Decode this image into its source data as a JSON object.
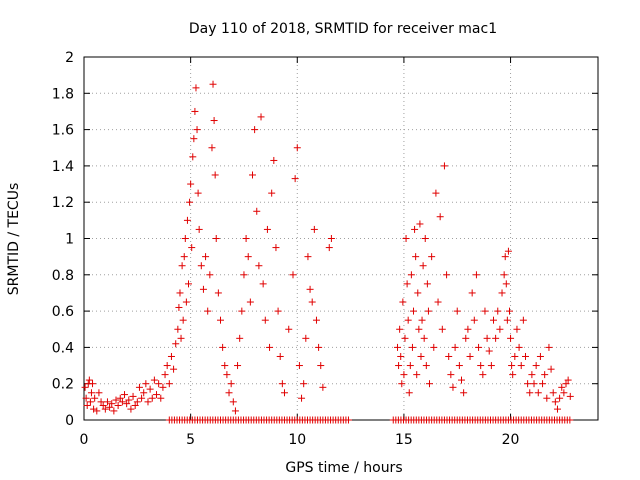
{
  "chart_data": {
    "type": "scatter",
    "title": "Day 110 of 2018, SRMTID for receiver mac1",
    "xlabel": "GPS time / hours",
    "ylabel": "SRMTID / TECUs",
    "xlim": [
      0,
      24.1
    ],
    "ylim": [
      0,
      2
    ],
    "xticks": [
      0,
      5,
      10,
      15,
      20
    ],
    "xtick_labels": [
      "0",
      "5",
      "10",
      "15",
      "20"
    ],
    "yticks": [
      0,
      0.2,
      0.4,
      0.6,
      0.8,
      1,
      1.2,
      1.4,
      1.6,
      1.8,
      2
    ],
    "ytick_labels": [
      "0",
      "0.2",
      "0.4",
      "0.6",
      "0.8",
      "1",
      "1.2",
      "1.4",
      "1.6",
      "1.8",
      "2"
    ],
    "grid": true,
    "marker": "+",
    "marker_color": "#e00000",
    "series": [
      {
        "name": "SRMTID",
        "points": [
          [
            0.05,
            0.18
          ],
          [
            0.1,
            0.12
          ],
          [
            0.15,
            0.08
          ],
          [
            0.2,
            0.2
          ],
          [
            0.25,
            0.22
          ],
          [
            0.3,
            0.1
          ],
          [
            0.35,
            0.15
          ],
          [
            0.4,
            0.2
          ],
          [
            0.45,
            0.06
          ],
          [
            0.5,
            0.12
          ],
          [
            0.6,
            0.05
          ],
          [
            0.7,
            0.15
          ],
          [
            0.8,
            0.1
          ],
          [
            0.9,
            0.08
          ],
          [
            1.0,
            0.06
          ],
          [
            1.1,
            0.1
          ],
          [
            1.2,
            0.07
          ],
          [
            1.3,
            0.09
          ],
          [
            1.4,
            0.05
          ],
          [
            1.5,
            0.11
          ],
          [
            1.6,
            0.08
          ],
          [
            1.7,
            0.12
          ],
          [
            1.8,
            0.1
          ],
          [
            1.9,
            0.14
          ],
          [
            2.0,
            0.09
          ],
          [
            2.1,
            0.11
          ],
          [
            2.2,
            0.06
          ],
          [
            2.3,
            0.13
          ],
          [
            2.4,
            0.08
          ],
          [
            2.5,
            0.1
          ],
          [
            2.6,
            0.18
          ],
          [
            2.7,
            0.12
          ],
          [
            2.8,
            0.15
          ],
          [
            2.9,
            0.2
          ],
          [
            3.0,
            0.1
          ],
          [
            3.1,
            0.17
          ],
          [
            3.2,
            0.12
          ],
          [
            3.3,
            0.22
          ],
          [
            3.4,
            0.14
          ],
          [
            3.5,
            0.2
          ],
          [
            3.6,
            0.12
          ],
          [
            3.7,
            0.18
          ],
          [
            3.8,
            0.25
          ],
          [
            3.9,
            0.3
          ],
          [
            4.0,
            0.2
          ],
          [
            4.1,
            0.35
          ],
          [
            4.2,
            0.28
          ],
          [
            4.3,
            0.42
          ],
          [
            4.4,
            0.5
          ],
          [
            4.45,
            0.62
          ],
          [
            4.5,
            0.7
          ],
          [
            4.55,
            0.45
          ],
          [
            4.6,
            0.85
          ],
          [
            4.65,
            0.55
          ],
          [
            4.7,
            0.9
          ],
          [
            4.75,
            1.0
          ],
          [
            4.8,
            0.65
          ],
          [
            4.85,
            1.1
          ],
          [
            4.9,
            0.75
          ],
          [
            4.95,
            1.2
          ],
          [
            5.0,
            1.3
          ],
          [
            5.05,
            0.95
          ],
          [
            5.1,
            1.45
          ],
          [
            5.15,
            1.55
          ],
          [
            5.2,
            1.7
          ],
          [
            5.25,
            1.83
          ],
          [
            5.3,
            1.6
          ],
          [
            5.35,
            1.25
          ],
          [
            5.4,
            1.05
          ],
          [
            5.5,
            0.85
          ],
          [
            5.6,
            0.72
          ],
          [
            5.7,
            0.9
          ],
          [
            5.8,
            0.6
          ],
          [
            5.9,
            0.8
          ],
          [
            6.0,
            1.5
          ],
          [
            6.05,
            1.85
          ],
          [
            6.1,
            1.65
          ],
          [
            6.15,
            1.35
          ],
          [
            6.2,
            1.0
          ],
          [
            6.3,
            0.7
          ],
          [
            6.4,
            0.55
          ],
          [
            6.5,
            0.4
          ],
          [
            6.6,
            0.3
          ],
          [
            6.7,
            0.25
          ],
          [
            6.8,
            0.15
          ],
          [
            6.9,
            0.2
          ],
          [
            7.0,
            0.1
          ],
          [
            7.1,
            0.05
          ],
          [
            7.2,
            0.3
          ],
          [
            7.3,
            0.45
          ],
          [
            7.4,
            0.6
          ],
          [
            7.5,
            0.8
          ],
          [
            7.6,
            1.0
          ],
          [
            7.7,
            0.9
          ],
          [
            7.8,
            0.65
          ],
          [
            7.9,
            1.35
          ],
          [
            8.0,
            1.6
          ],
          [
            8.1,
            1.15
          ],
          [
            8.2,
            0.85
          ],
          [
            8.3,
            1.67
          ],
          [
            8.4,
            0.75
          ],
          [
            8.5,
            0.55
          ],
          [
            8.6,
            1.05
          ],
          [
            8.7,
            0.4
          ],
          [
            8.8,
            1.25
          ],
          [
            8.9,
            1.43
          ],
          [
            9.0,
            0.95
          ],
          [
            9.1,
            0.6
          ],
          [
            9.2,
            0.35
          ],
          [
            9.3,
            0.2
          ],
          [
            9.4,
            0.15
          ],
          [
            9.6,
            0.5
          ],
          [
            9.8,
            0.8
          ],
          [
            9.9,
            1.33
          ],
          [
            10.0,
            1.5
          ],
          [
            10.1,
            0.3
          ],
          [
            10.2,
            0.12
          ],
          [
            10.3,
            0.2
          ],
          [
            10.4,
            0.45
          ],
          [
            10.5,
            0.9
          ],
          [
            10.6,
            0.72
          ],
          [
            10.7,
            0.65
          ],
          [
            10.8,
            1.05
          ],
          [
            10.9,
            0.55
          ],
          [
            11.0,
            0.4
          ],
          [
            11.1,
            0.3
          ],
          [
            11.2,
            0.18
          ],
          [
            11.5,
            0.95
          ],
          [
            11.6,
            1.0
          ],
          [
            14.7,
            0.4
          ],
          [
            14.75,
            0.3
          ],
          [
            14.8,
            0.5
          ],
          [
            14.85,
            0.35
          ],
          [
            14.9,
            0.2
          ],
          [
            14.95,
            0.65
          ],
          [
            15.0,
            0.25
          ],
          [
            15.05,
            0.45
          ],
          [
            15.1,
            1.0
          ],
          [
            15.15,
            0.75
          ],
          [
            15.2,
            0.55
          ],
          [
            15.25,
            0.15
          ],
          [
            15.3,
            0.3
          ],
          [
            15.35,
            0.8
          ],
          [
            15.4,
            0.4
          ],
          [
            15.45,
            0.6
          ],
          [
            15.5,
            1.05
          ],
          [
            15.55,
            0.9
          ],
          [
            15.6,
            0.25
          ],
          [
            15.65,
            0.7
          ],
          [
            15.7,
            0.5
          ],
          [
            15.75,
            1.08
          ],
          [
            15.8,
            0.35
          ],
          [
            15.85,
            0.55
          ],
          [
            15.9,
            0.85
          ],
          [
            15.95,
            0.45
          ],
          [
            16.0,
            1.0
          ],
          [
            16.05,
            0.3
          ],
          [
            16.1,
            0.75
          ],
          [
            16.15,
            0.6
          ],
          [
            16.2,
            0.2
          ],
          [
            16.3,
            0.9
          ],
          [
            16.4,
            0.4
          ],
          [
            16.5,
            1.25
          ],
          [
            16.6,
            0.65
          ],
          [
            16.7,
            1.12
          ],
          [
            16.8,
            0.5
          ],
          [
            16.9,
            1.4
          ],
          [
            17.0,
            0.8
          ],
          [
            17.1,
            0.35
          ],
          [
            17.2,
            0.25
          ],
          [
            17.3,
            0.18
          ],
          [
            17.4,
            0.4
          ],
          [
            17.5,
            0.6
          ],
          [
            17.6,
            0.3
          ],
          [
            17.7,
            0.22
          ],
          [
            17.8,
            0.15
          ],
          [
            17.9,
            0.45
          ],
          [
            18.0,
            0.5
          ],
          [
            18.1,
            0.35
          ],
          [
            18.2,
            0.7
          ],
          [
            18.3,
            0.55
          ],
          [
            18.4,
            0.8
          ],
          [
            18.5,
            0.4
          ],
          [
            18.6,
            0.3
          ],
          [
            18.7,
            0.25
          ],
          [
            18.8,
            0.6
          ],
          [
            18.9,
            0.45
          ],
          [
            19.0,
            0.38
          ],
          [
            19.1,
            0.3
          ],
          [
            19.2,
            0.55
          ],
          [
            19.3,
            0.45
          ],
          [
            19.4,
            0.6
          ],
          [
            19.5,
            0.5
          ],
          [
            19.6,
            0.7
          ],
          [
            19.7,
            0.8
          ],
          [
            19.75,
            0.9
          ],
          [
            19.8,
            0.75
          ],
          [
            19.85,
            0.55
          ],
          [
            19.9,
            0.93
          ],
          [
            19.95,
            0.6
          ],
          [
            20.0,
            0.45
          ],
          [
            20.05,
            0.3
          ],
          [
            20.1,
            0.25
          ],
          [
            20.2,
            0.35
          ],
          [
            20.3,
            0.5
          ],
          [
            20.4,
            0.4
          ],
          [
            20.5,
            0.3
          ],
          [
            20.6,
            0.55
          ],
          [
            20.7,
            0.35
          ],
          [
            20.8,
            0.2
          ],
          [
            20.9,
            0.15
          ],
          [
            21.0,
            0.25
          ],
          [
            21.1,
            0.2
          ],
          [
            21.2,
            0.3
          ],
          [
            21.3,
            0.15
          ],
          [
            21.4,
            0.35
          ],
          [
            21.5,
            0.2
          ],
          [
            21.6,
            0.25
          ],
          [
            21.7,
            0.12
          ],
          [
            21.8,
            0.4
          ],
          [
            21.9,
            0.28
          ],
          [
            22.0,
            0.15
          ],
          [
            22.1,
            0.1
          ],
          [
            22.2,
            0.06
          ],
          [
            22.3,
            0.12
          ],
          [
            22.4,
            0.18
          ],
          [
            22.5,
            0.15
          ],
          [
            22.6,
            0.2
          ],
          [
            22.7,
            0.22
          ],
          [
            22.8,
            0.13
          ]
        ]
      }
    ],
    "zero_band": [
      [
        4.0,
        12.5
      ],
      [
        14.5,
        22.9
      ]
    ]
  }
}
